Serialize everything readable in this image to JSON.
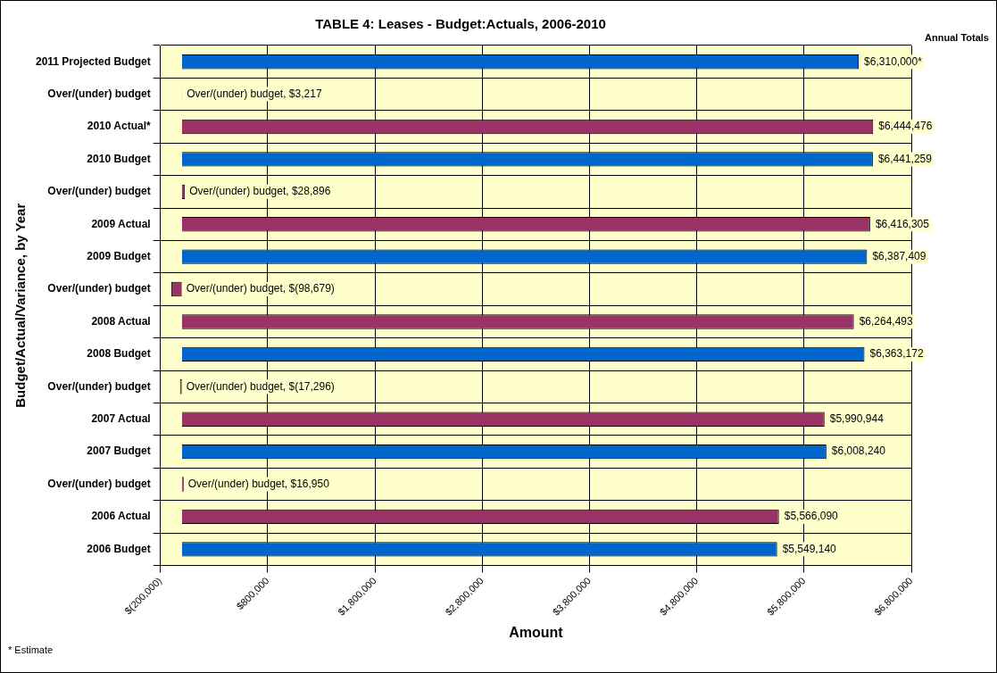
{
  "chart_data": {
    "type": "bar",
    "orientation": "horizontal",
    "title": "TABLE 4: Leases - Budget:Actuals, 2006-2010",
    "xlabel": "Amount",
    "ylabel": "Budget/Actual/Variance, by Year",
    "categories": [
      "2011 Projected Budget",
      "Over/(under) budget",
      "2010 Actual*",
      "2010 Budget",
      "Over/(under) budget",
      "2009 Actual",
      "2009 Budget",
      "Over/(under) budget",
      "2008 Actual",
      "2008 Budget",
      "Over/(under) budget",
      "2007 Actual",
      "2007 Budget",
      "Over/(under) budget",
      "2006 Actual",
      "2006 Budget"
    ],
    "values": [
      6310000,
      3217,
      6444476,
      6441259,
      28896,
      6416305,
      6387409,
      -98679,
      6264493,
      6363172,
      -17296,
      5990944,
      6008240,
      16950,
      5566090,
      5549140
    ],
    "colors": [
      "#0066cc",
      "#993366",
      "#993366",
      "#0066cc",
      "#993366",
      "#993366",
      "#0066cc",
      "#993366",
      "#993366",
      "#0066cc",
      "#993366",
      "#993366",
      "#0066cc",
      "#993366",
      "#993366",
      "#0066cc"
    ],
    "value_labels": [
      null,
      "Over/(under) budget, $3,217",
      null,
      null,
      "Over/(under) budget, $28,896",
      null,
      null,
      "Over/(under) budget, $(98,679)",
      null,
      null,
      "Over/(under) budget, $(17,296)",
      null,
      null,
      "Over/(under) budget, $16,950",
      null,
      null
    ],
    "totals": [
      "$6,310,000*",
      null,
      "$6,444,476",
      "$6,441,259",
      null,
      "$6,416,305",
      "$6,387,409",
      null,
      "$6,264,493",
      "$6,363,172",
      null,
      "$5,990,944",
      "$6,008,240",
      null,
      "$5,566,090",
      "$5,549,140"
    ],
    "xlim": [
      -200000,
      6800000
    ],
    "xticks": [
      {
        "value": -200000,
        "label": "$(200,000)"
      },
      {
        "value": 800000,
        "label": "$800,000"
      },
      {
        "value": 1800000,
        "label": "$1,800,000"
      },
      {
        "value": 2800000,
        "label": "$2,800,000"
      },
      {
        "value": 3800000,
        "label": "$3,800,000"
      },
      {
        "value": 4800000,
        "label": "$4,800,000"
      },
      {
        "value": 5800000,
        "label": "$5,800,000"
      },
      {
        "value": 6800000,
        "label": "$6,800,000"
      }
    ],
    "grid": true,
    "legend": false,
    "annotations": [
      "Annual Totals",
      "* Estimate"
    ]
  }
}
